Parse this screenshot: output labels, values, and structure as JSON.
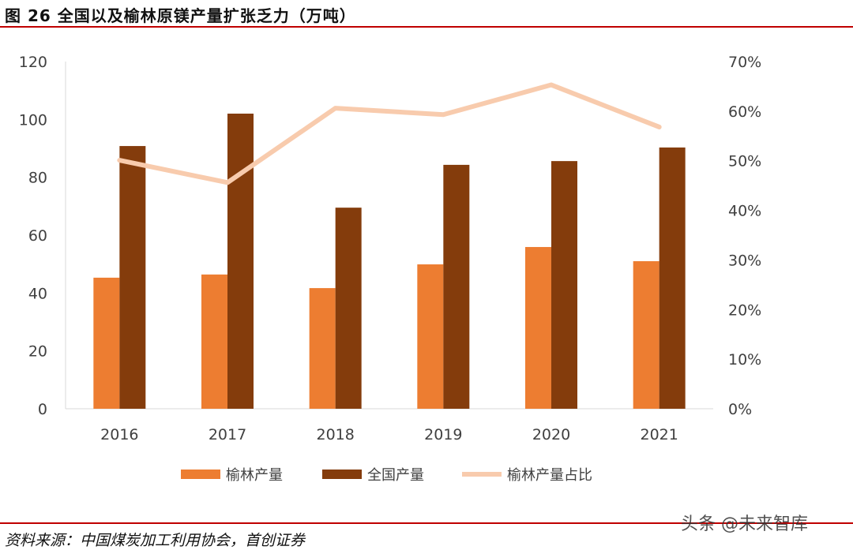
{
  "title": "图 26 全国以及榆林原镁产量扩张乏力（万吨）",
  "source": "资料来源：中国煤炭加工利用协会，首创证券",
  "watermark": "头条 @未来智库",
  "chart_data": {
    "type": "bar",
    "categories": [
      "2016",
      "2017",
      "2018",
      "2019",
      "2020",
      "2021"
    ],
    "series": [
      {
        "name": "榆林产量",
        "type": "bar",
        "axis": "left",
        "color": "#ed7d31",
        "values": [
          45.3,
          46.4,
          41.7,
          49.9,
          55.9,
          51.0
        ]
      },
      {
        "name": "全国产量",
        "type": "bar",
        "axis": "left",
        "color": "#843c0c",
        "values": [
          90.8,
          102.0,
          69.5,
          84.3,
          85.6,
          90.3
        ]
      },
      {
        "name": "榆林产量占比",
        "type": "line",
        "axis": "right",
        "color": "#f8cbad",
        "values": [
          0.501,
          0.456,
          0.606,
          0.593,
          0.653,
          0.568
        ]
      }
    ],
    "ylim": [
      0,
      120
    ],
    "yticks": [
      "0",
      "20",
      "40",
      "60",
      "80",
      "100",
      "120"
    ],
    "y2lim": [
      0,
      0.7
    ],
    "y2ticks": [
      "0%",
      "10%",
      "20%",
      "30%",
      "40%",
      "50%",
      "60%",
      "70%"
    ],
    "legend": "bottom",
    "grid": false
  }
}
